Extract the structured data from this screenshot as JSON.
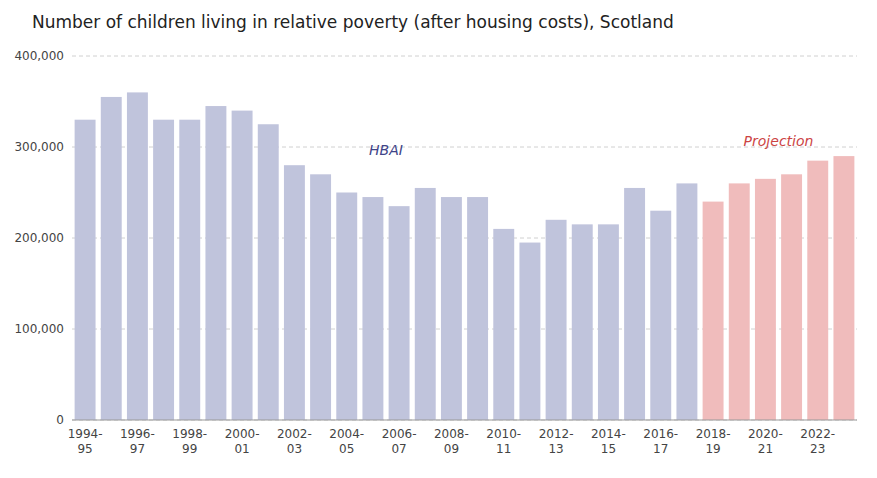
{
  "chart_data": {
    "type": "bar",
    "title": "Number of children living in relative poverty (after housing costs), Scotland",
    "categories": [
      "1994-\n95",
      null,
      "1996-\n97",
      null,
      "1998-\n99",
      null,
      "2000-\n01",
      null,
      "2002-\n03",
      null,
      "2004-\n05",
      null,
      "2006-\n07",
      null,
      "2008-\n09",
      null,
      "2010-\n11",
      null,
      "2012-\n13",
      null,
      "2014-\n15",
      null,
      "2016-\n17",
      null,
      "2018-\n19",
      null,
      "2020-\n21",
      null,
      "2022-\n23",
      null
    ],
    "values": [
      330000,
      355000,
      360000,
      330000,
      330000,
      345000,
      340000,
      325000,
      280000,
      270000,
      250000,
      245000,
      235000,
      255000,
      245000,
      245000,
      210000,
      195000,
      220000,
      215000,
      215000,
      255000,
      230000,
      260000,
      240000,
      260000,
      265000,
      270000,
      285000,
      290000
    ],
    "colors": [
      "#C0C4DC",
      "#C0C4DC",
      "#C0C4DC",
      "#C0C4DC",
      "#C0C4DC",
      "#C0C4DC",
      "#C0C4DC",
      "#C0C4DC",
      "#C0C4DC",
      "#C0C4DC",
      "#C0C4DC",
      "#C0C4DC",
      "#C0C4DC",
      "#C0C4DC",
      "#C0C4DC",
      "#C0C4DC",
      "#C0C4DC",
      "#C0C4DC",
      "#C0C4DC",
      "#C0C4DC",
      "#C0C4DC",
      "#C0C4DC",
      "#C0C4DC",
      "#C0C4DC",
      "#F0BCBC",
      "#F0BCBC",
      "#F0BCBC",
      "#F0BCBC",
      "#F0BCBC",
      "#F0BCBC"
    ],
    "ylim": [
      0,
      400000
    ],
    "yticks": [
      0,
      {
        "value": 100000,
        "label": "100,000"
      },
      {
        "value": 200000,
        "label": "200,000"
      },
      {
        "value": 300000,
        "label": "300,000"
      },
      {
        "value": 400000,
        "label": "400,000"
      }
    ],
    "grid": true,
    "annotations": [
      {
        "text": "HBAI",
        "color": "#404488"
      },
      {
        "text": "Projection",
        "color": "#CC4444"
      }
    ]
  }
}
